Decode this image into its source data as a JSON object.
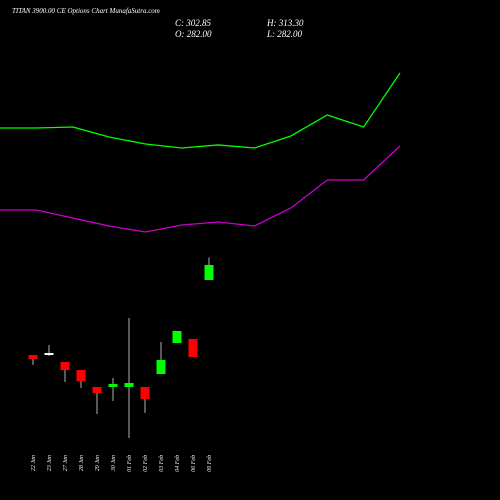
{
  "chart_data": {
    "type": "candlestick",
    "title": "TITAN 3900.00 CE Options Chart MunafaSutra.com",
    "info": [
      "C: 302.85",
      "O: 282.00",
      "H: 313.30",
      "L: 282.00"
    ],
    "categories": [
      "22 Jan",
      "23 Jan",
      "27 Jan",
      "28 Jan",
      "29 Jan",
      "30 Jan",
      "01 Feb",
      "02 Feb",
      "03 Feb",
      "04 Feb",
      "06 Feb",
      "09 Feb"
    ],
    "open": [
      177.8,
      180.5,
      168.0,
      156.9,
      133.3,
      133.3,
      133.3,
      133.3,
      151.3,
      194.4,
      200.0,
      282.0
    ],
    "high": [
      177.8,
      191.7,
      168.0,
      156.9,
      133.3,
      145.8,
      229.2,
      133.3,
      195.8,
      211.1,
      200.0,
      313.3
    ],
    "low": [
      163.9,
      176.4,
      140.2,
      131.9,
      95.7,
      113.8,
      62.4,
      97.1,
      151.3,
      194.4,
      175.0,
      282.0
    ],
    "close": [
      172.2,
      180.5,
      156.9,
      141.6,
      124.9,
      137.4,
      138.8,
      116.6,
      170.8,
      211.1,
      175.0,
      302.85
    ],
    "up_color": "#00ff00",
    "down_color": "#ff0000",
    "flat_color": "#ffffff",
    "lines": [
      {
        "color": "#00ff00",
        "values": [
          493.3,
          493.3,
          494.7,
          480.8,
          471.0,
          465.5,
          469.7,
          465.5,
          482.2,
          511.4,
          494.7,
          569.7
        ]
      },
      {
        "color": "#cc00cc",
        "values": [
          379.3,
          379.3,
          368.2,
          357.1,
          348.7,
          358.5,
          362.6,
          357.1,
          382.1,
          421.0,
          421.0,
          468.3
        ]
      }
    ],
    "ylim": [
      -23.8,
      671.2
    ]
  }
}
